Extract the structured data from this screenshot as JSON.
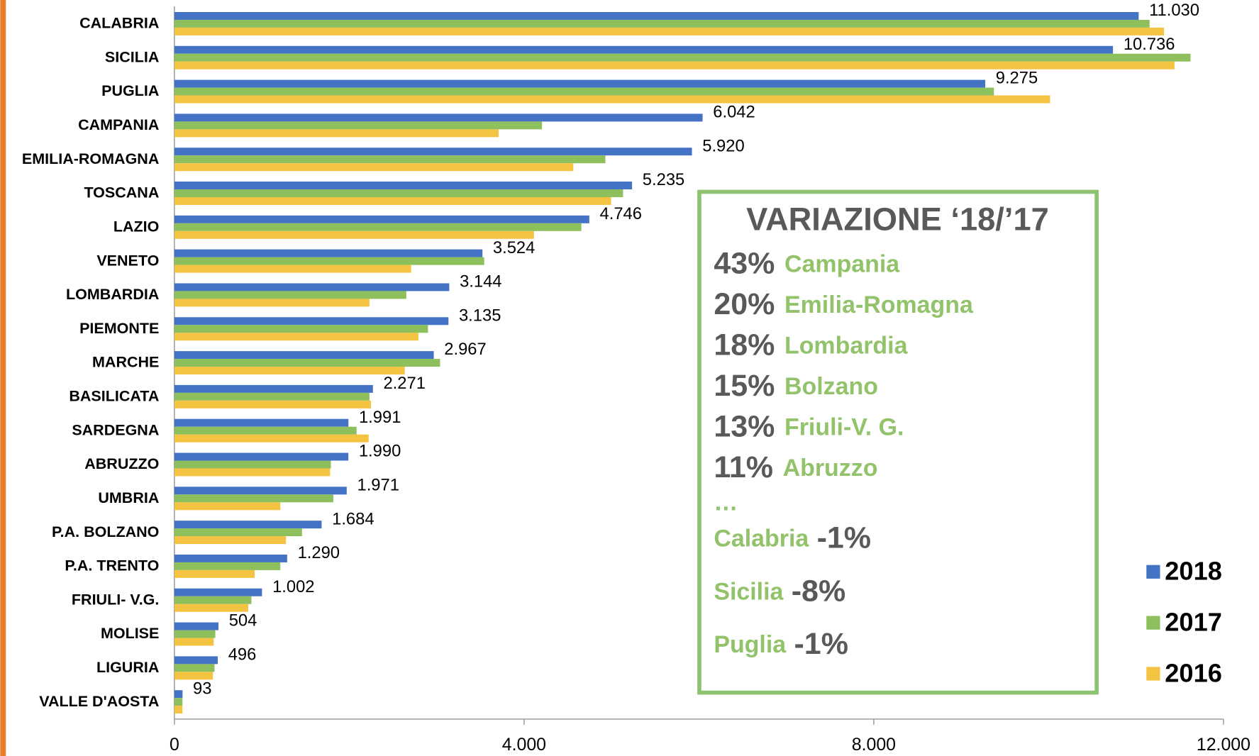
{
  "chart_data": {
    "type": "hbar",
    "categories": [
      "CALABRIA",
      "SICILIA",
      "PUGLIA",
      "CAMPANIA",
      "EMILIA-ROMAGNA",
      "TOSCANA",
      "LAZIO",
      "VENETO",
      "LOMBARDIA",
      "PIEMONTE",
      "MARCHE",
      "BASILICATA",
      "SARDEGNA",
      "ABRUZZO",
      "UMBRIA",
      "P.A. BOLZANO",
      "P.A. TRENTO",
      "FRIULI- V.G.",
      "MOLISE",
      "LIGURIA",
      "VALLE D'AOSTA"
    ],
    "series": [
      {
        "name": "2018",
        "color": "#4472c4",
        "values": [
          11030,
          10736,
          9275,
          6042,
          5920,
          5235,
          4746,
          3524,
          3144,
          3135,
          2967,
          2271,
          1991,
          1990,
          1971,
          1684,
          1290,
          1002,
          504,
          496,
          93
        ],
        "value_labels": [
          "11.030",
          "10.736",
          "9.275",
          "6.042",
          "5.920",
          "5.235",
          "4.746",
          "3.524",
          "3.144",
          "3.135",
          "2.967",
          "2.271",
          "1.991",
          "1.990",
          "1.971",
          "1.684",
          "1.290",
          "1.002",
          "504",
          "496",
          "93"
        ]
      },
      {
        "name": "2017",
        "color": "#8dc05c",
        "values": [
          11155,
          11623,
          9374,
          4205,
          4930,
          5132,
          4655,
          3544,
          2653,
          2901,
          3039,
          2231,
          2084,
          1790,
          1818,
          1460,
          1212,
          881,
          468,
          459,
          92
        ]
      },
      {
        "name": "2016",
        "color": "#f5c342",
        "values": [
          11320,
          11440,
          10017,
          3709,
          4563,
          4995,
          4113,
          2708,
          2231,
          2791,
          2635,
          2249,
          2222,
          1781,
          1212,
          1276,
          918,
          845,
          450,
          441,
          92
        ]
      }
    ],
    "xlim": [
      0,
      12000
    ],
    "xticks": [
      0,
      {
        "value": 4000,
        "label": "4.000"
      },
      {
        "value": 8000,
        "label": "8.000"
      },
      {
        "value": 12000,
        "label": "12.000"
      }
    ],
    "grid": false,
    "legend": "bottom-right",
    "annotation": {
      "title": "VARIAZIONE ‘18/’17",
      "items": [
        {
          "pct": "43%",
          "name": "Campania"
        },
        {
          "pct": "20%",
          "name": "Emilia-Romagna"
        },
        {
          "pct": "18%",
          "name": "Lombardia"
        },
        {
          "pct": "15%",
          "name": "Bolzano"
        },
        {
          "pct": "13%",
          "name": "Friuli-V. G."
        },
        {
          "pct": "11%",
          "name": "Abruzzo"
        }
      ],
      "ellipsis": "…",
      "tail": [
        {
          "name": "Calabria",
          "pct": "-1%"
        },
        {
          "name": "Sicilia",
          "pct": "-8%"
        },
        {
          "name": "Puglia",
          "pct": "-1%"
        }
      ]
    }
  }
}
